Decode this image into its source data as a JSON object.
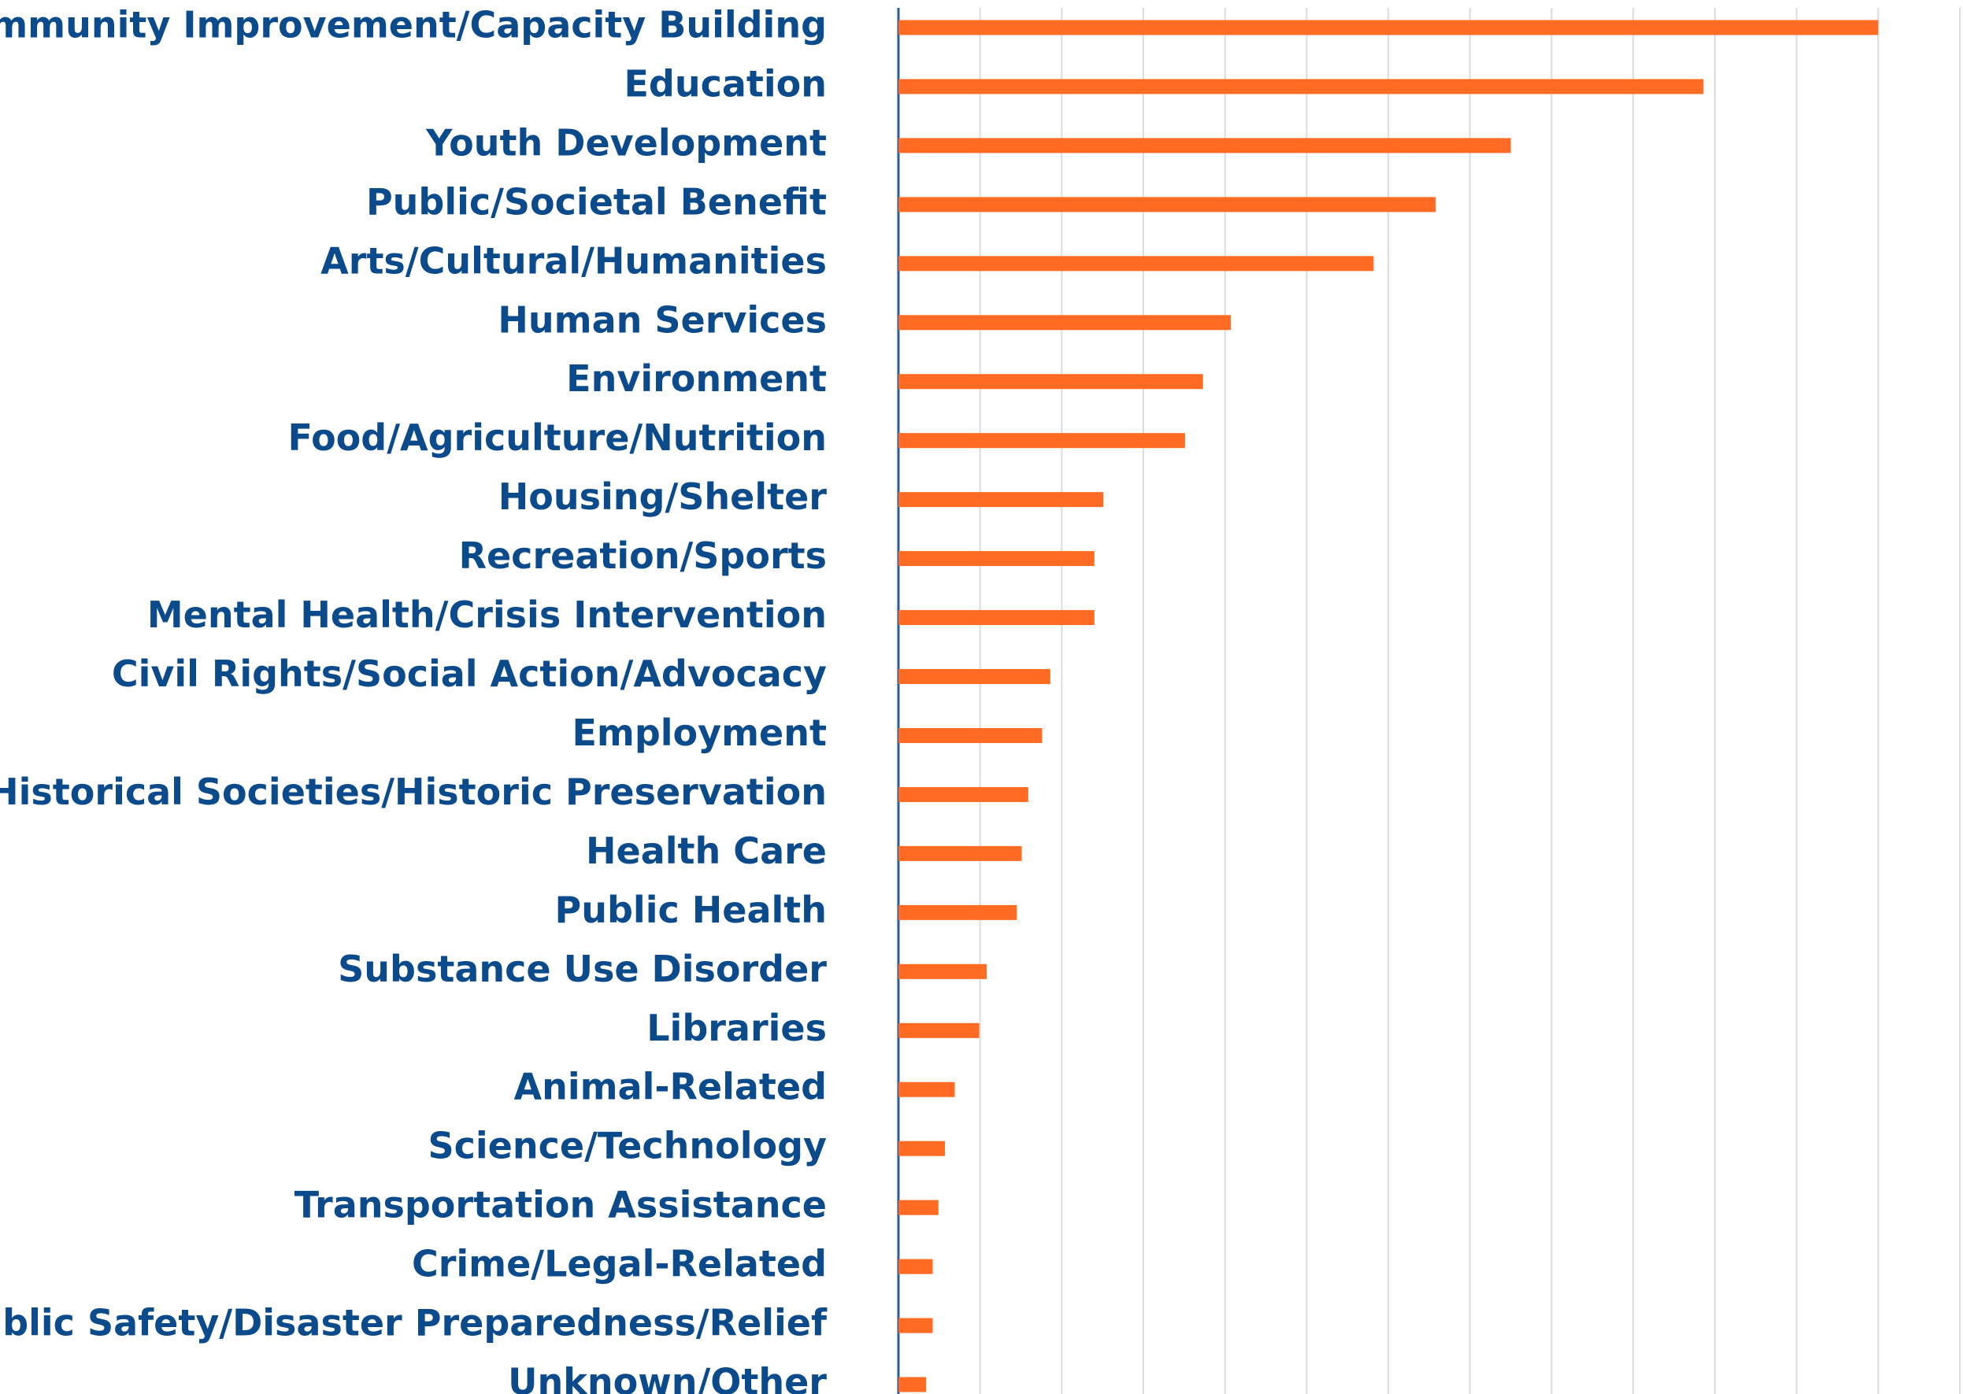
{
  "chart_data": {
    "type": "bar",
    "orientation": "horizontal",
    "categories": [
      "Community Improvement/Capacity Building",
      "Education",
      "Youth Development",
      "Public/Societal Benefit",
      "Arts/Cultural/Humanities",
      "Human Services",
      "Environment",
      "Food/Agriculture/Nutrition",
      "Housing/Shelter",
      "Recreation/Sports",
      "Mental Health/Crisis Intervention",
      "Civil Rights/Social Action/Advocacy",
      "Employment",
      "Historical Societies/Historic Preservation",
      "Health Care",
      "Public Health",
      "Substance Use Disorder",
      "Libraries",
      "Animal-Related",
      "Science/Technology",
      "Transportation Assistance",
      "Crime/Legal-Related",
      "Public Safety/Disaster Preparedness/Relief",
      "Unknown/Other"
    ],
    "values": [
      12.0,
      9.86,
      7.5,
      6.58,
      5.82,
      4.07,
      3.73,
      3.51,
      2.51,
      2.4,
      2.4,
      1.86,
      1.76,
      1.59,
      1.51,
      1.45,
      1.08,
      0.99,
      0.69,
      0.57,
      0.49,
      0.42,
      0.42,
      0.34
    ],
    "color": "#ff6b22",
    "xlim": [
      0,
      13
    ],
    "xticks": [
      0,
      1,
      2,
      3,
      4,
      5,
      6,
      7,
      8,
      9,
      10,
      11,
      12,
      13
    ],
    "grid": true
  }
}
